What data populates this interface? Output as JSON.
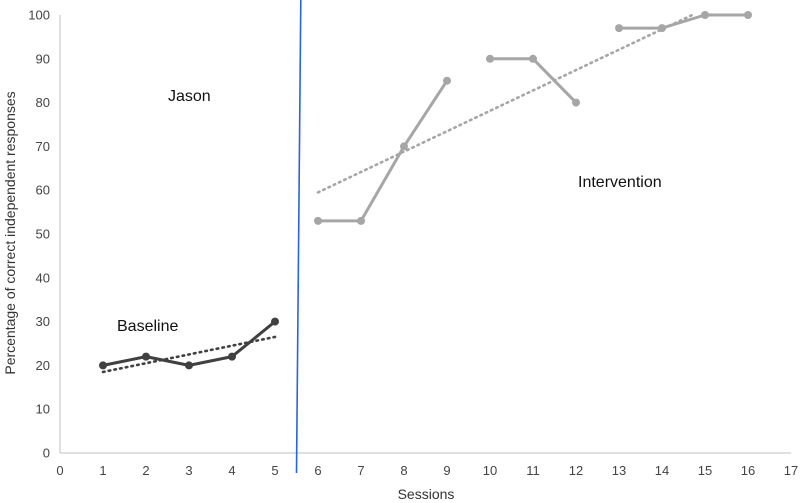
{
  "chart_data": {
    "type": "line",
    "title": "",
    "xlabel": "Sessions",
    "ylabel": "Percentage of correct independent responses",
    "xlim": [
      0,
      17
    ],
    "ylim": [
      0,
      100
    ],
    "x_ticks": [
      0,
      1,
      2,
      3,
      4,
      5,
      6,
      7,
      8,
      9,
      10,
      11,
      12,
      13,
      14,
      15,
      16,
      17
    ],
    "y_ticks": [
      0,
      10,
      20,
      30,
      40,
      50,
      60,
      70,
      80,
      90,
      100
    ],
    "phase_change_x": 5.55,
    "annotations": {
      "participant": "Jason",
      "baseline": "Baseline",
      "intervention": "Intervention"
    },
    "series": [
      {
        "name": "Baseline",
        "color": "#404040",
        "points": [
          [
            1,
            20
          ],
          [
            2,
            22
          ],
          [
            3,
            20
          ],
          [
            4,
            22
          ],
          [
            5,
            30
          ]
        ]
      },
      {
        "name": "Intervention (6-9)",
        "color": "#a6a6a6",
        "points": [
          [
            6,
            53
          ],
          [
            7,
            53
          ],
          [
            8,
            70
          ],
          [
            9,
            85
          ]
        ]
      },
      {
        "name": "Intervention (10-12)",
        "color": "#a6a6a6",
        "points": [
          [
            10,
            90
          ],
          [
            11,
            90
          ],
          [
            12,
            80
          ]
        ]
      },
      {
        "name": "Intervention (13-16)",
        "color": "#a6a6a6",
        "points": [
          [
            13,
            97
          ],
          [
            14,
            97
          ],
          [
            15,
            100
          ],
          [
            16,
            100
          ]
        ]
      }
    ],
    "trendlines": [
      {
        "name": "Baseline trend",
        "color": "#404040",
        "from": [
          1,
          18.5
        ],
        "to": [
          5,
          26.5
        ]
      },
      {
        "name": "Intervention trend",
        "color": "#a6a6a6",
        "from": [
          6,
          59.5
        ],
        "to": [
          14.7,
          100
        ]
      }
    ],
    "phase_line_color": "#2a64d6"
  }
}
